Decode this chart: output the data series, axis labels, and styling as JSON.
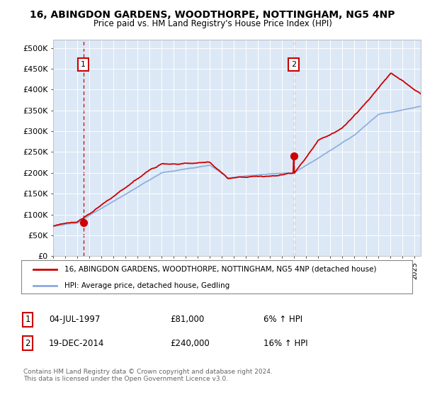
{
  "title": "16, ABINGDON GARDENS, WOODTHORPE, NOTTINGHAM, NG5 4NP",
  "subtitle": "Price paid vs. HM Land Registry's House Price Index (HPI)",
  "ylabel_ticks": [
    "£0",
    "£50K",
    "£100K",
    "£150K",
    "£200K",
    "£250K",
    "£300K",
    "£350K",
    "£400K",
    "£450K",
    "£500K"
  ],
  "ytick_values": [
    0,
    50000,
    100000,
    150000,
    200000,
    250000,
    300000,
    350000,
    400000,
    450000,
    500000
  ],
  "sale1_date_num": 1997.5,
  "sale1_price": 81000,
  "sale2_date_num": 2014.96,
  "sale2_price": 240000,
  "hpi_line_color": "#88aadd",
  "price_line_color": "#cc0000",
  "vline_color": "#cc0000",
  "plot_bg_color": "#dce8f5",
  "legend_line1": "16, ABINGDON GARDENS, WOODTHORPE, NOTTINGHAM, NG5 4NP (detached house)",
  "legend_line2": "HPI: Average price, detached house, Gedling",
  "note1_date": "04-JUL-1997",
  "note1_price": "£81,000",
  "note1_hpi": "6% ↑ HPI",
  "note2_date": "19-DEC-2014",
  "note2_price": "£240,000",
  "note2_hpi": "16% ↑ HPI",
  "footnote": "Contains HM Land Registry data © Crown copyright and database right 2024.\nThis data is licensed under the Open Government Licence v3.0.",
  "xmin": 1995,
  "xmax": 2025.5
}
